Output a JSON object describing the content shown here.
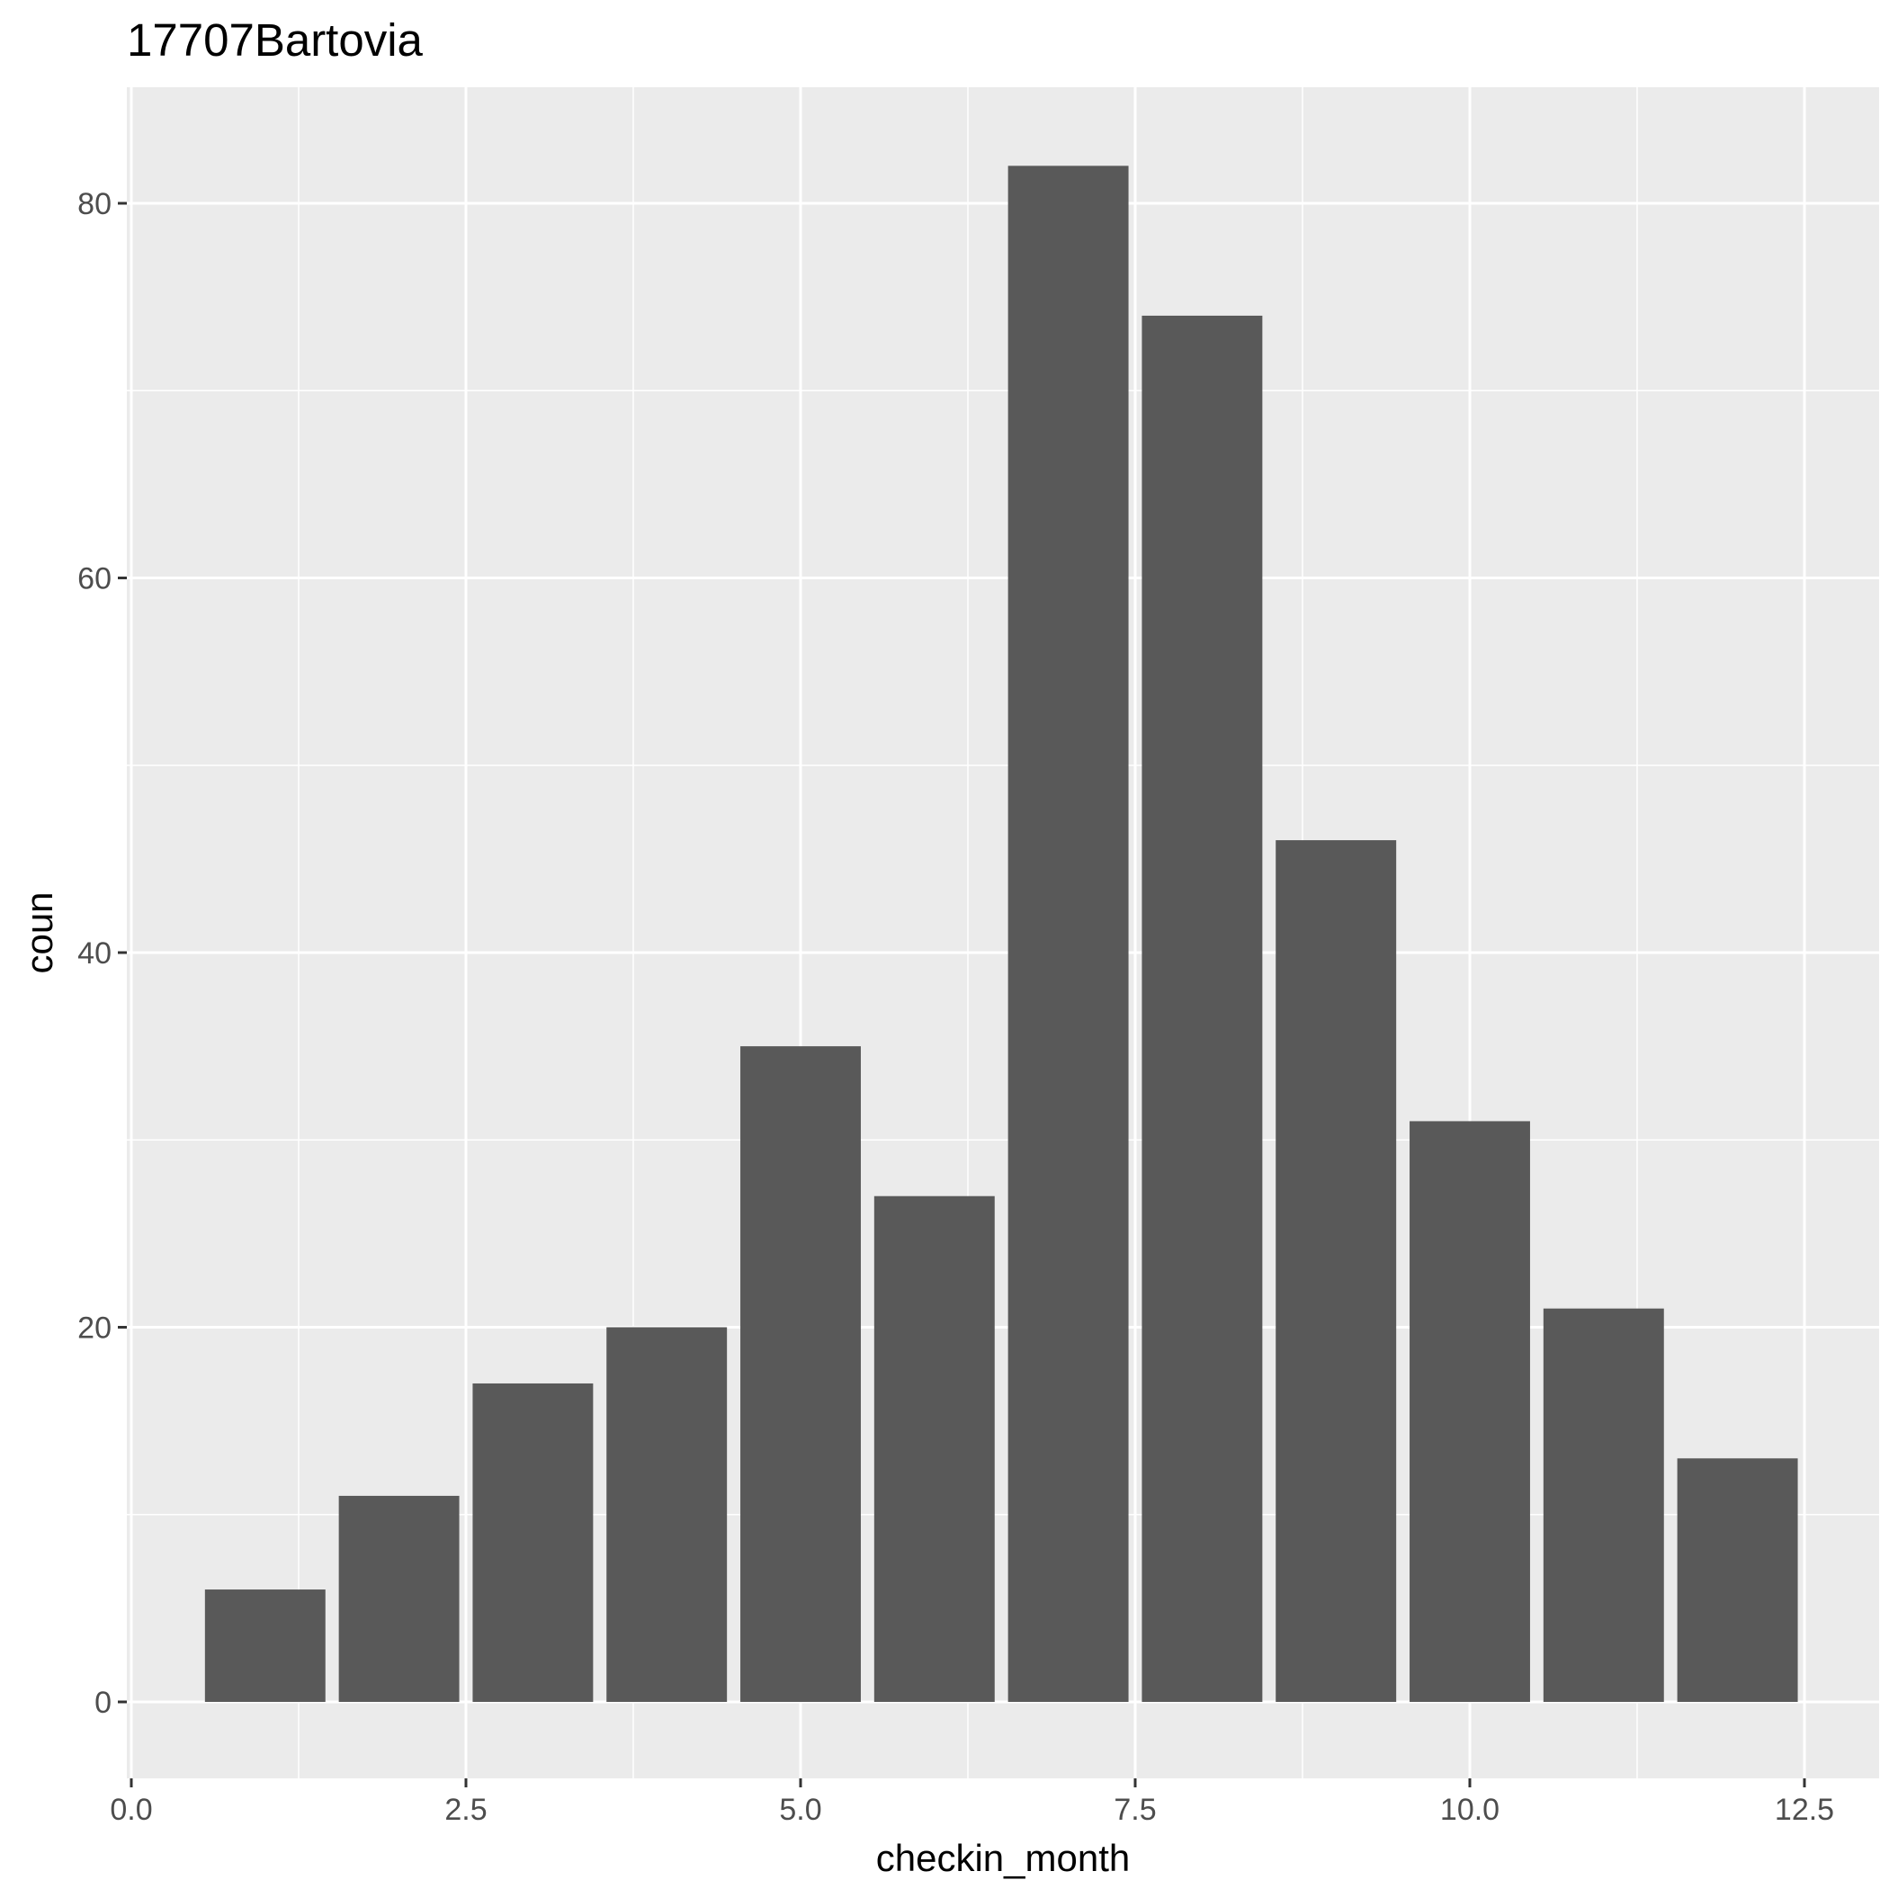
{
  "chart_data": {
    "type": "bar",
    "title": "17707Bartovia",
    "xlabel": "checkin_month",
    "ylabel": "coun",
    "x": [
      1,
      2,
      3,
      4,
      5,
      6,
      7,
      8,
      9,
      10,
      11,
      12
    ],
    "values": [
      6,
      11,
      17,
      20,
      35,
      27,
      82,
      74,
      46,
      31,
      21,
      13
    ],
    "xlim": [
      0,
      12.5
    ],
    "ylim": [
      0,
      80
    ],
    "x_ticks": [
      "0.0",
      "2.5",
      "5.0",
      "7.5",
      "10.0",
      "12.5"
    ],
    "x_tick_values": [
      0,
      2.5,
      5,
      7.5,
      10,
      12.5
    ],
    "y_ticks": [
      "0",
      "20",
      "40",
      "60",
      "80"
    ],
    "y_tick_values": [
      0,
      20,
      40,
      60,
      80
    ],
    "grid": true,
    "bar_color": "#595959",
    "panel_color": "#ebebeb",
    "grid_color": "#ffffff"
  }
}
